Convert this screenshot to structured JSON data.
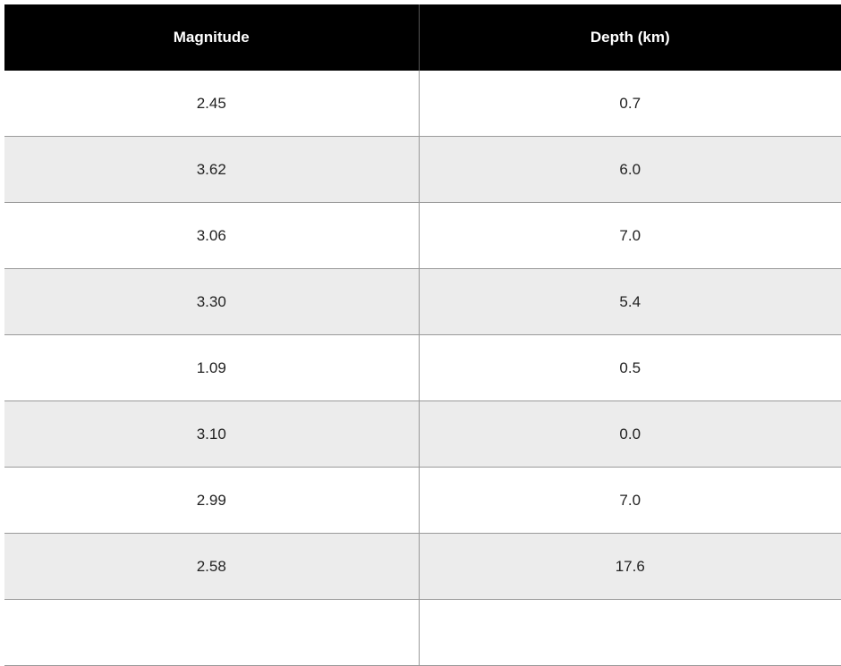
{
  "table": {
    "columns": [
      "Magnitude",
      "Depth (km)"
    ],
    "rows": [
      [
        "2.45",
        "0.7"
      ],
      [
        "3.62",
        "6.0"
      ],
      [
        "3.06",
        "7.0"
      ],
      [
        "3.30",
        "5.4"
      ],
      [
        "1.09",
        "0.5"
      ],
      [
        "3.10",
        "0.0"
      ],
      [
        "2.99",
        "7.0"
      ],
      [
        "2.58",
        "17.6"
      ],
      [
        "",
        ""
      ]
    ],
    "colors": {
      "header_bg": "#000000",
      "header_text": "#ffffff",
      "row_alt_bg": "#ececec",
      "border": "#9a9a9a"
    }
  }
}
